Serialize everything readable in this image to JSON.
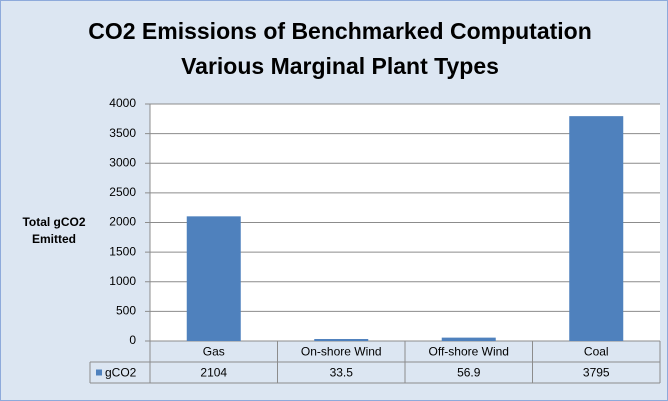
{
  "chart_data": {
    "type": "bar",
    "title": "CO2 Emissions of Benchmarked Computation Various Marginal Plant Types",
    "y_label": "Total gCO2 Emitted",
    "categories": [
      "Gas",
      "On-shore Wind",
      "Off-shore Wind",
      "Coal"
    ],
    "series": [
      {
        "name": "gCO2",
        "color": "#4f81bd",
        "values": [
          2104,
          33.5,
          56.9,
          3795
        ]
      }
    ],
    "ylim": [
      0,
      4000
    ],
    "yticks": [
      0,
      500,
      1000,
      1500,
      2000,
      2500,
      3000,
      3500,
      4000
    ],
    "grid": true
  }
}
